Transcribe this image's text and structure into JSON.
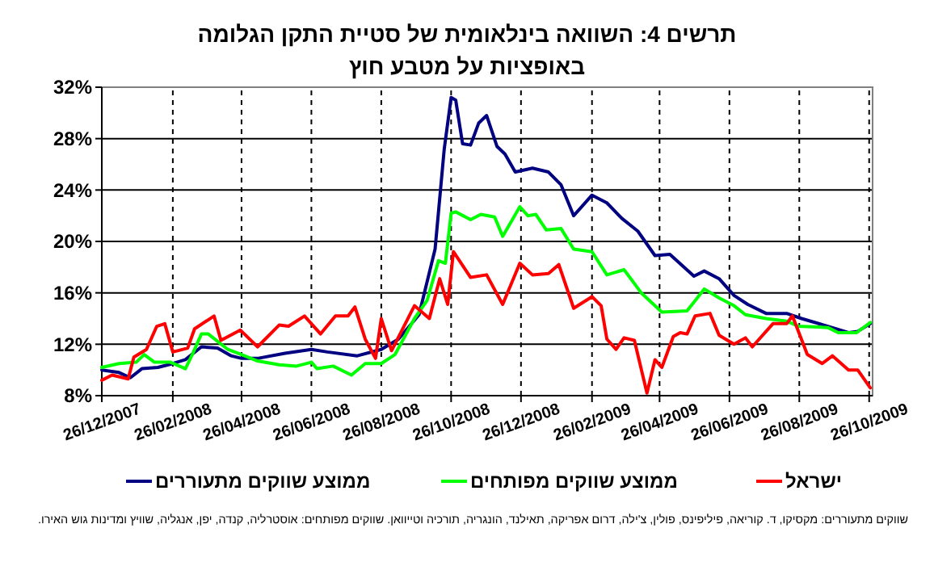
{
  "chart_data": {
    "type": "line",
    "title": "תרשים 4: השוואה בינלאומית של סטיית התקן הגלומה באופציות על מטבע חוץ",
    "xlim": [
      "2007-12-26",
      "2009-10-29"
    ],
    "xticks": [
      {
        "value": "2007-12-26",
        "label": "26/12/2007"
      },
      {
        "value": "2008-02-26",
        "label": "26/02/2008"
      },
      {
        "value": "2008-04-26",
        "label": "26/04/2008"
      },
      {
        "value": "2008-06-26",
        "label": "26/06/2008"
      },
      {
        "value": "2008-08-26",
        "label": "26/08/2008"
      },
      {
        "value": "2008-10-26",
        "label": "26/10/2008"
      },
      {
        "value": "2008-12-26",
        "label": "26/12/2008"
      },
      {
        "value": "2009-02-26",
        "label": "26/02/2009"
      },
      {
        "value": "2009-04-26",
        "label": "26/04/2009"
      },
      {
        "value": "2009-06-26",
        "label": "26/06/2009"
      },
      {
        "value": "2009-08-26",
        "label": "26/08/2009"
      },
      {
        "value": "2009-10-26",
        "label": "26/10/2009"
      }
    ],
    "ylim": [
      8,
      32
    ],
    "yticks": [
      {
        "value": 8,
        "label": "8%"
      },
      {
        "value": 12,
        "label": "12%"
      },
      {
        "value": 16,
        "label": "16%"
      },
      {
        "value": 20,
        "label": "20%"
      },
      {
        "value": 24,
        "label": "24%"
      },
      {
        "value": 28,
        "label": "28%"
      },
      {
        "value": 32,
        "label": "32%"
      }
    ],
    "grid": true,
    "legend": "bottom",
    "marker": "none",
    "line_style": "solid",
    "series": [
      {
        "name": "ממוצע שווקים מתעוררים",
        "color": "#000080",
        "x": [
          "2007-12-26",
          "2008-01-10",
          "2008-01-20",
          "2008-01-30",
          "2008-02-13",
          "2008-02-26",
          "2008-03-08",
          "2008-03-22",
          "2008-04-05",
          "2008-04-17",
          "2008-04-26",
          "2008-05-10",
          "2008-06-03",
          "2008-06-26",
          "2008-07-10",
          "2008-08-05",
          "2008-08-26",
          "2008-09-10",
          "2008-09-28",
          "2008-10-12",
          "2008-10-20",
          "2008-10-26",
          "2008-10-30",
          "2008-11-05",
          "2008-11-12",
          "2008-11-19",
          "2008-11-26",
          "2008-12-05",
          "2008-12-12",
          "2008-12-21",
          "2009-01-05",
          "2009-01-19",
          "2009-01-30",
          "2009-02-10",
          "2009-02-26",
          "2009-03-11",
          "2009-03-24",
          "2009-04-07",
          "2009-04-22",
          "2009-05-05",
          "2009-05-26",
          "2009-06-04",
          "2009-06-17",
          "2009-06-30",
          "2009-07-12",
          "2009-07-28",
          "2009-08-15",
          "2009-08-28",
          "2009-09-20",
          "2009-10-08",
          "2009-10-16",
          "2009-10-27"
        ],
        "values": [
          10.0,
          9.8,
          9.4,
          10.1,
          10.2,
          10.5,
          10.8,
          11.8,
          11.7,
          11.1,
          10.9,
          10.9,
          11.3,
          11.6,
          11.4,
          11.1,
          11.6,
          12.4,
          14.3,
          19.4,
          27.2,
          31.2,
          31.0,
          27.6,
          27.5,
          29.2,
          29.8,
          27.4,
          26.8,
          25.4,
          25.7,
          25.4,
          24.4,
          22.0,
          23.6,
          23.0,
          21.8,
          20.8,
          18.9,
          19.0,
          17.3,
          17.7,
          17.1,
          15.8,
          15.1,
          14.4,
          14.4,
          14.0,
          13.4,
          12.9,
          13.0,
          13.6
        ]
      },
      {
        "name": "ממוצע שווקים מפותחים",
        "color": "#00ff00",
        "x": [
          "2007-12-26",
          "2008-01-10",
          "2008-01-25",
          "2008-02-01",
          "2008-02-10",
          "2008-02-24",
          "2008-03-08",
          "2008-03-14",
          "2008-03-22",
          "2008-03-28",
          "2008-04-14",
          "2008-04-26",
          "2008-05-10",
          "2008-05-29",
          "2008-06-13",
          "2008-06-26",
          "2008-07-01",
          "2008-07-15",
          "2008-07-31",
          "2008-08-12",
          "2008-08-26",
          "2008-09-07",
          "2008-09-24",
          "2008-10-05",
          "2008-10-15",
          "2008-10-21",
          "2008-10-26",
          "2008-10-30",
          "2008-11-12",
          "2008-11-21",
          "2008-12-03",
          "2008-12-10",
          "2008-12-25",
          "2009-01-01",
          "2009-01-08",
          "2009-01-17",
          "2009-01-30",
          "2009-02-10",
          "2009-02-26",
          "2009-03-11",
          "2009-03-26",
          "2009-04-10",
          "2009-04-28",
          "2009-05-20",
          "2009-06-04",
          "2009-06-17",
          "2009-06-30",
          "2009-07-10",
          "2009-07-28",
          "2009-08-15",
          "2009-08-25",
          "2009-09-20",
          "2009-09-29",
          "2009-10-15",
          "2009-10-27"
        ],
        "values": [
          10.2,
          10.5,
          10.6,
          11.2,
          10.6,
          10.6,
          10.1,
          11.2,
          12.8,
          12.8,
          11.6,
          11.2,
          10.7,
          10.4,
          10.3,
          10.6,
          10.1,
          10.3,
          9.6,
          10.5,
          10.5,
          11.2,
          14.0,
          15.4,
          18.5,
          18.3,
          22.2,
          22.3,
          21.7,
          22.1,
          21.9,
          20.4,
          22.7,
          22.0,
          22.1,
          20.9,
          21.0,
          19.4,
          19.2,
          17.4,
          17.8,
          16.0,
          14.5,
          14.6,
          16.3,
          15.6,
          15.0,
          14.3,
          14.0,
          13.8,
          13.4,
          13.3,
          12.9,
          12.9,
          13.7
        ]
      },
      {
        "name": "ישראל",
        "color": "#ff0000",
        "x": [
          "2007-12-26",
          "2008-01-04",
          "2008-01-18",
          "2008-01-23",
          "2008-02-03",
          "2008-02-12",
          "2008-02-19",
          "2008-02-26",
          "2008-03-10",
          "2008-03-16",
          "2008-04-02",
          "2008-04-08",
          "2008-04-25",
          "2008-05-10",
          "2008-05-29",
          "2008-06-06",
          "2008-06-20",
          "2008-07-04",
          "2008-07-17",
          "2008-07-28",
          "2008-08-03",
          "2008-08-12",
          "2008-08-21",
          "2008-08-26",
          "2008-09-04",
          "2008-09-24",
          "2008-10-07",
          "2008-10-16",
          "2008-10-23",
          "2008-10-28",
          "2008-11-12",
          "2008-11-26",
          "2008-12-10",
          "2008-12-25",
          "2009-01-05",
          "2009-01-19",
          "2009-01-28",
          "2009-02-10",
          "2009-02-26",
          "2009-03-06",
          "2009-03-11",
          "2009-03-19",
          "2009-03-26",
          "2009-04-04",
          "2009-04-15",
          "2009-04-22",
          "2009-04-28",
          "2009-05-08",
          "2009-05-14",
          "2009-05-20",
          "2009-05-27",
          "2009-06-09",
          "2009-06-17",
          "2009-06-30",
          "2009-07-10",
          "2009-07-16",
          "2009-08-03",
          "2009-08-15",
          "2009-08-20",
          "2009-09-02",
          "2009-09-15",
          "2009-09-24",
          "2009-10-08",
          "2009-10-16",
          "2009-10-27"
        ],
        "values": [
          9.2,
          9.6,
          9.3,
          11.0,
          11.6,
          13.4,
          13.6,
          11.4,
          11.7,
          13.2,
          14.2,
          12.3,
          13.1,
          11.8,
          13.5,
          13.4,
          14.2,
          12.8,
          14.2,
          14.2,
          14.9,
          12.4,
          10.9,
          14.0,
          11.5,
          15.0,
          14.0,
          17.1,
          15.1,
          19.2,
          17.2,
          17.4,
          15.1,
          18.3,
          17.4,
          17.5,
          18.2,
          14.8,
          15.7,
          15.0,
          12.4,
          11.6,
          12.5,
          12.3,
          8.2,
          10.8,
          10.2,
          12.6,
          12.9,
          12.8,
          14.2,
          14.4,
          12.7,
          12.0,
          12.5,
          11.8,
          13.6,
          13.6,
          14.2,
          11.2,
          10.5,
          11.1,
          10.0,
          10.0,
          8.6
        ]
      }
    ],
    "annotations": [
      "שווקים מתעוררים: מקסיקו, ד. קוריאה, פיליפינס, פולין, צ'ילה, דרום אפריקה, תאילנד, הונגריה, תורכיה וטייוואן. שווקים מפותחים: אוסטרליה, קנדה, יפן, אנגליה, שוויץ ומדינות גוש האירו."
    ]
  }
}
